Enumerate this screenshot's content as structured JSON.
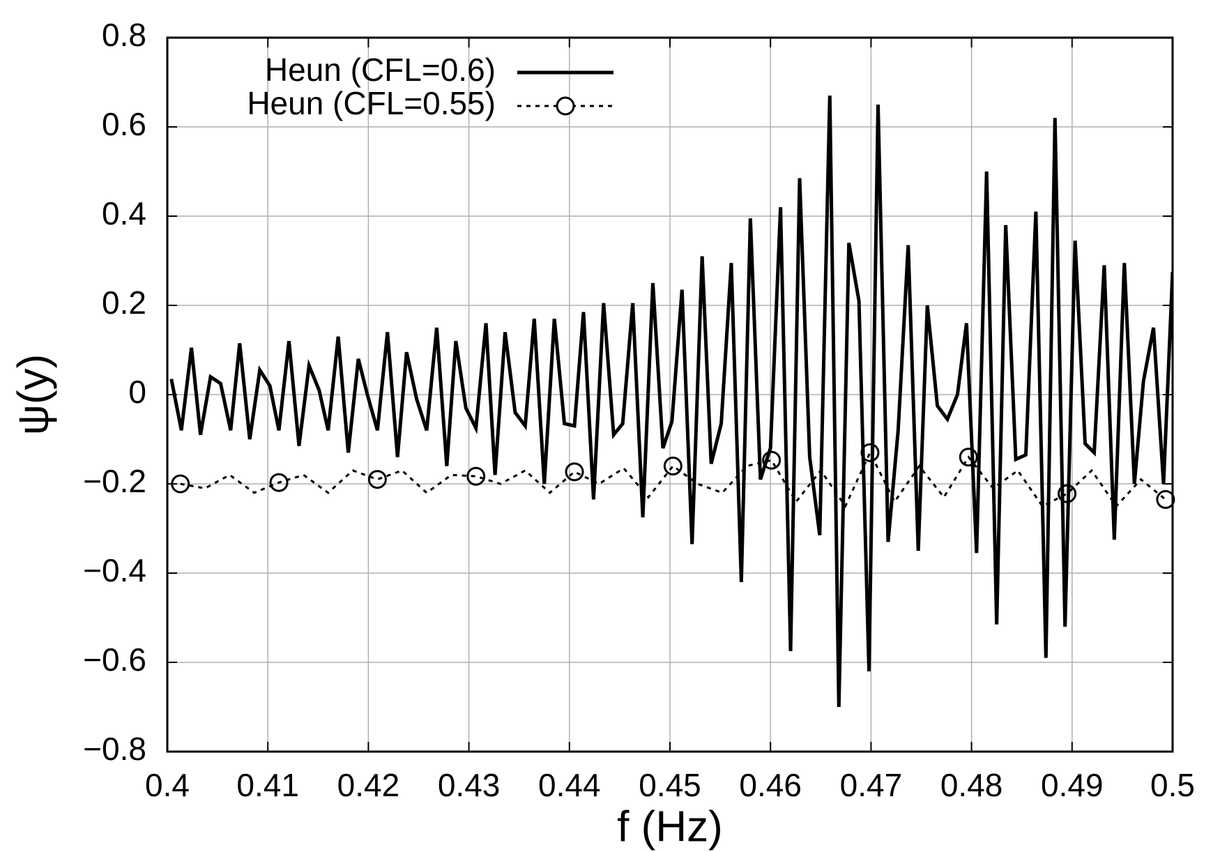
{
  "chart_data": {
    "type": "line",
    "xlabel": "f (Hz)",
    "ylabel": "ψ(y)",
    "xlim": [
      0.4,
      0.5
    ],
    "xticks": [
      0.4,
      0.41,
      0.42,
      0.43,
      0.44,
      0.45,
      0.46,
      0.47,
      0.48,
      0.49,
      0.5
    ],
    "ylim": [
      -0.8,
      0.8
    ],
    "yticks": [
      {
        "value": -0.8,
        "label": "−0.8"
      },
      {
        "value": -0.6,
        "label": "−0.6"
      },
      {
        "value": -0.4,
        "label": "−0.4"
      },
      {
        "value": -0.2,
        "label": "−0.2"
      },
      0,
      0.2,
      0.4,
      0.6,
      0.8
    ],
    "grid": true,
    "legend": "upper left",
    "series": [
      {
        "name": "Heun (CFL=0.6)",
        "color": "#000000",
        "style": "solid",
        "x": [
          0.4004,
          0.4014,
          0.4024,
          0.4033,
          0.4043,
          0.4053,
          0.4063,
          0.4072,
          0.4082,
          0.4092,
          0.4102,
          0.4111,
          0.4121,
          0.4131,
          0.4141,
          0.4151,
          0.416,
          0.417,
          0.418,
          0.419,
          0.4199,
          0.4209,
          0.4219,
          0.4229,
          0.4238,
          0.4248,
          0.4258,
          0.4268,
          0.4278,
          0.4287,
          0.4297,
          0.4307,
          0.4317,
          0.4326,
          0.4336,
          0.4346,
          0.4356,
          0.4365,
          0.4375,
          0.4385,
          0.4395,
          0.4405,
          0.4414,
          0.4424,
          0.4434,
          0.4444,
          0.4453,
          0.4463,
          0.4473,
          0.4483,
          0.4493,
          0.4502,
          0.4512,
          0.4522,
          0.4532,
          0.4541,
          0.4551,
          0.4561,
          0.4571,
          0.458,
          0.459,
          0.46,
          0.461,
          0.462,
          0.4629,
          0.4639,
          0.4649,
          0.4659,
          0.4668,
          0.4678,
          0.4688,
          0.4698,
          0.4707,
          0.4717,
          0.4727,
          0.4737,
          0.4747,
          0.4756,
          0.4766,
          0.4776,
          0.4786,
          0.4795,
          0.4805,
          0.4815,
          0.4825,
          0.4834,
          0.4844,
          0.4854,
          0.4864,
          0.4874,
          0.4883,
          0.4893,
          0.4903,
          0.4913,
          0.4922,
          0.4932,
          0.4942,
          0.4952,
          0.4962,
          0.4971,
          0.4981,
          0.4991,
          0.5
        ],
        "values": [
          0.035,
          -0.08,
          0.105,
          -0.09,
          0.04,
          0.025,
          -0.08,
          0.115,
          -0.1,
          0.055,
          0.02,
          -0.08,
          0.12,
          -0.115,
          0.065,
          0.01,
          -0.08,
          0.13,
          -0.13,
          0.08,
          0,
          -0.08,
          0.14,
          -0.14,
          0.095,
          -0.01,
          -0.08,
          0.15,
          -0.16,
          0.12,
          -0.03,
          -0.075,
          0.16,
          -0.18,
          0.14,
          -0.04,
          -0.07,
          0.17,
          -0.2,
          0.17,
          -0.065,
          -0.07,
          0.185,
          -0.235,
          0.205,
          -0.09,
          -0.065,
          0.205,
          -0.275,
          0.25,
          -0.12,
          -0.06,
          0.235,
          -0.335,
          0.31,
          -0.155,
          -0.065,
          0.295,
          -0.42,
          0.395,
          -0.19,
          -0.12,
          0.42,
          -0.575,
          0.485,
          -0.14,
          -0.315,
          0.67,
          -0.7,
          0.34,
          0.21,
          -0.62,
          0.65,
          -0.33,
          -0.08,
          0.335,
          -0.35,
          0.2,
          -0.025,
          -0.055,
          0,
          0.16,
          -0.355,
          0.5,
          -0.515,
          0.38,
          -0.145,
          -0.135,
          0.41,
          -0.59,
          0.62,
          -0.52,
          0.345,
          -0.11,
          -0.13,
          0.29,
          -0.325,
          0.295,
          -0.2,
          0.03,
          0.15,
          -0.2,
          0.275
        ]
      },
      {
        "name": "Heun (CFL=0.55)",
        "color": "#000000",
        "style": "dotted",
        "marker": "circle",
        "marker_every": 4,
        "x": [
          0.4013,
          0.40375,
          0.4062,
          0.40865,
          0.4111,
          0.41355,
          0.416,
          0.41845,
          0.4209,
          0.42335,
          0.4258,
          0.42825,
          0.4307,
          0.43315,
          0.4356,
          0.43805,
          0.4405,
          0.44295,
          0.4454,
          0.44785,
          0.4503,
          0.45275,
          0.4552,
          0.45765,
          0.4601,
          0.46255,
          0.465,
          0.46745,
          0.4699,
          0.47235,
          0.4748,
          0.47725,
          0.4797,
          0.48215,
          0.4846,
          0.48705,
          0.4895,
          0.49195,
          0.4944,
          0.49685,
          0.4993
        ],
        "values": [
          -0.2,
          -0.21,
          -0.18,
          -0.22,
          -0.197,
          -0.18,
          -0.22,
          -0.17,
          -0.19,
          -0.17,
          -0.22,
          -0.18,
          -0.183,
          -0.2,
          -0.17,
          -0.22,
          -0.173,
          -0.2,
          -0.165,
          -0.23,
          -0.16,
          -0.2,
          -0.22,
          -0.16,
          -0.147,
          -0.24,
          -0.17,
          -0.25,
          -0.13,
          -0.24,
          -0.16,
          -0.23,
          -0.14,
          -0.21,
          -0.17,
          -0.25,
          -0.222,
          -0.17,
          -0.25,
          -0.19,
          -0.235
        ]
      }
    ]
  }
}
